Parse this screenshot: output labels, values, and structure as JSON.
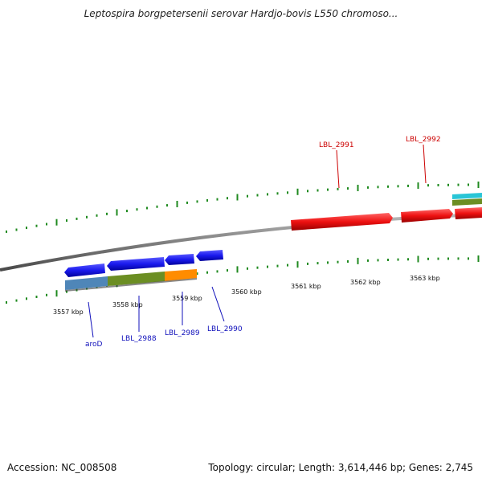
{
  "title": "Leptospira borgpetersenii serovar Hardjo-bovis L550 chromoso...",
  "footer": {
    "accession": "Accession: NC_008508",
    "summary": "Topology: circular; Length: 3,614,446 bp; Genes: 2,745"
  },
  "colors": {
    "backbone": "#808080",
    "tick": "#1f8a1f",
    "forward_gene": "#ee1111",
    "reverse_gene": "#1a1aee",
    "label_forward": "#cc0000",
    "label_reverse": "#1010bb",
    "cog_steelblue": "#4f86b8",
    "cog_olive": "#6b8e23",
    "cog_orange": "#ff8c00",
    "cog_cyan": "#29c5d6"
  },
  "kbp_labels": [
    "3557 kbp",
    "3558 kbp",
    "3559 kbp",
    "3560 kbp",
    "3561 kbp",
    "3562 kbp",
    "3563 kbp"
  ],
  "genes_reverse": [
    "aroD",
    "LBL_2988",
    "LBL_2989",
    "LBL_2990"
  ],
  "genes_forward": [
    "LBL_2991",
    "LBL_2992"
  ]
}
